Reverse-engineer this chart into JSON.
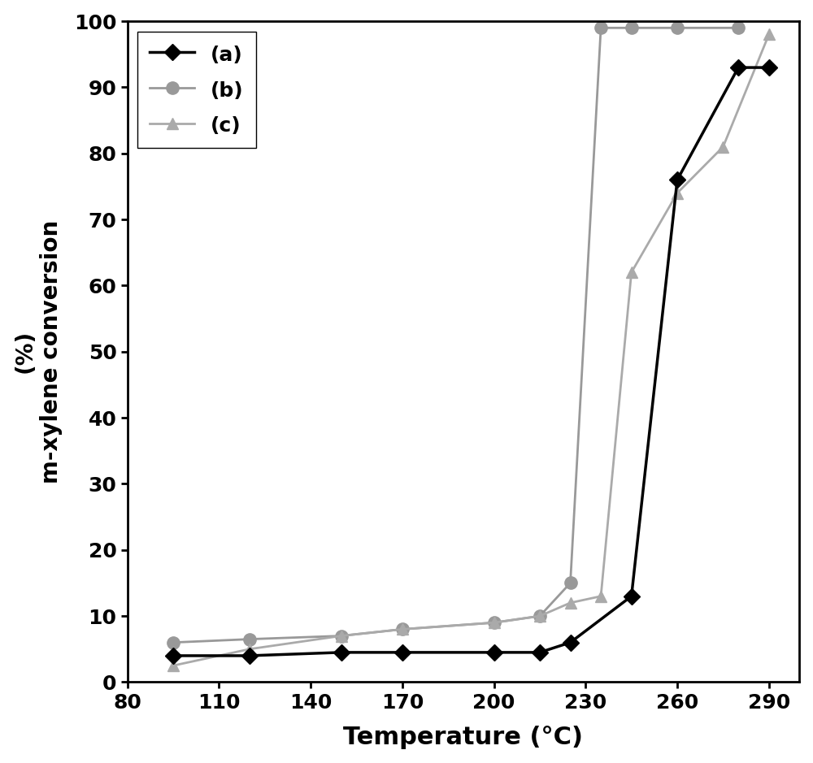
{
  "series_a": {
    "x": [
      95,
      120,
      150,
      170,
      200,
      215,
      225,
      245,
      260,
      280,
      290
    ],
    "y": [
      4,
      4,
      4.5,
      4.5,
      4.5,
      4.5,
      6,
      13,
      76,
      93,
      93
    ],
    "color": "#000000",
    "marker": "D",
    "marker_size": 10,
    "linewidth": 2.5,
    "label": "(a)",
    "zorder": 3
  },
  "series_b": {
    "x": [
      95,
      120,
      150,
      170,
      200,
      215,
      225,
      235,
      245,
      260,
      280
    ],
    "y": [
      6,
      6.5,
      7,
      8,
      9,
      10,
      15,
      99,
      99,
      99,
      99
    ],
    "color": "#999999",
    "marker": "o",
    "marker_size": 11,
    "linewidth": 2.0,
    "label": "(b)",
    "zorder": 2
  },
  "series_c": {
    "x": [
      95,
      120,
      150,
      170,
      200,
      215,
      225,
      235,
      245,
      260,
      275,
      290
    ],
    "y": [
      2.5,
      5,
      7,
      8,
      9,
      10,
      12,
      13,
      62,
      74,
      81,
      98
    ],
    "color": "#aaaaaa",
    "marker": "^",
    "marker_size": 10,
    "linewidth": 2.0,
    "label": "(c)",
    "zorder": 2
  },
  "xlabel": "Temperature (°C)",
  "ylabel_line1": "(%)",
  "ylabel_line2": "m-xylene conversion",
  "xlim": [
    80,
    300
  ],
  "ylim": [
    0,
    100
  ],
  "xticks": [
    80,
    110,
    140,
    170,
    200,
    230,
    260,
    290
  ],
  "yticks": [
    0,
    10,
    20,
    30,
    40,
    50,
    60,
    70,
    80,
    90,
    100
  ],
  "xlabel_fontsize": 22,
  "ylabel_fontsize": 20,
  "tick_fontsize": 18,
  "legend_fontsize": 18,
  "background_color": "#ffffff",
  "figure_width": 10.0,
  "figure_height": 9.39
}
